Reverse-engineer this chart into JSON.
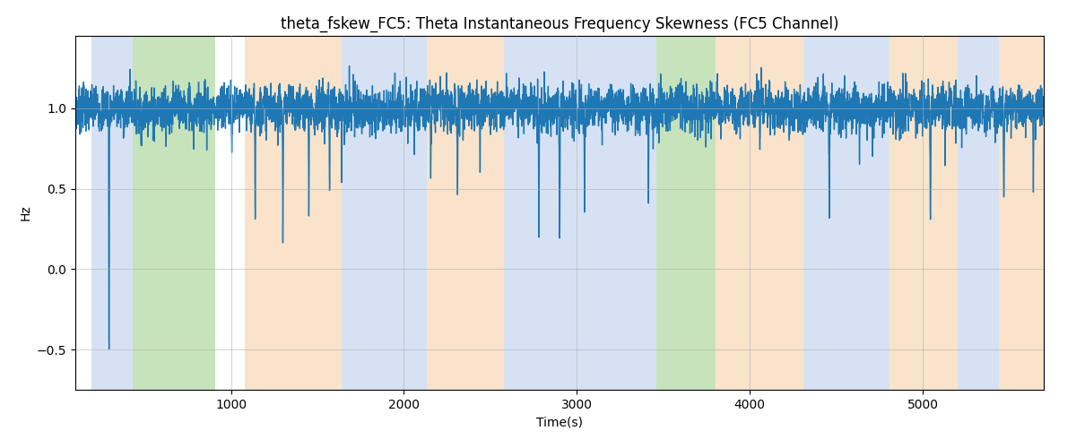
{
  "title": "theta_fskew_FC5: Theta Instantaneous Frequency Skewness (FC5 Channel)",
  "xlabel": "Time(s)",
  "ylabel": "Hz",
  "xlim": [
    100,
    5700
  ],
  "ylim": [
    -0.75,
    1.45
  ],
  "yticks": [
    -0.5,
    0.0,
    0.5,
    1.0
  ],
  "xticks": [
    1000,
    2000,
    3000,
    4000,
    5000
  ],
  "line_color": "#1f77b4",
  "line_width": 1.0,
  "background_color": "#ffffff",
  "grid_color": "#b0b0b0",
  "colored_bands": [
    {
      "xmin": 195,
      "xmax": 430,
      "color": "#aec6e8",
      "alpha": 0.5
    },
    {
      "xmin": 430,
      "xmax": 910,
      "color": "#90c878",
      "alpha": 0.5
    },
    {
      "xmin": 1080,
      "xmax": 1640,
      "color": "#f5c897",
      "alpha": 0.5
    },
    {
      "xmin": 1640,
      "xmax": 2130,
      "color": "#aec6e8",
      "alpha": 0.5
    },
    {
      "xmin": 2130,
      "xmax": 2580,
      "color": "#f5c897",
      "alpha": 0.5
    },
    {
      "xmin": 2580,
      "xmax": 3200,
      "color": "#aec6e8",
      "alpha": 0.5
    },
    {
      "xmin": 3200,
      "xmax": 3460,
      "color": "#aec6e8",
      "alpha": 0.5
    },
    {
      "xmin": 3460,
      "xmax": 3800,
      "color": "#90c878",
      "alpha": 0.5
    },
    {
      "xmin": 3800,
      "xmax": 4310,
      "color": "#f5c897",
      "alpha": 0.5
    },
    {
      "xmin": 4310,
      "xmax": 4810,
      "color": "#aec6e8",
      "alpha": 0.5
    },
    {
      "xmin": 4810,
      "xmax": 5200,
      "color": "#f5c897",
      "alpha": 0.5
    },
    {
      "xmin": 5200,
      "xmax": 5440,
      "color": "#aec6e8",
      "alpha": 0.5
    },
    {
      "xmin": 5440,
      "xmax": 5700,
      "color": "#f5c897",
      "alpha": 0.5
    }
  ],
  "title_fontsize": 12
}
